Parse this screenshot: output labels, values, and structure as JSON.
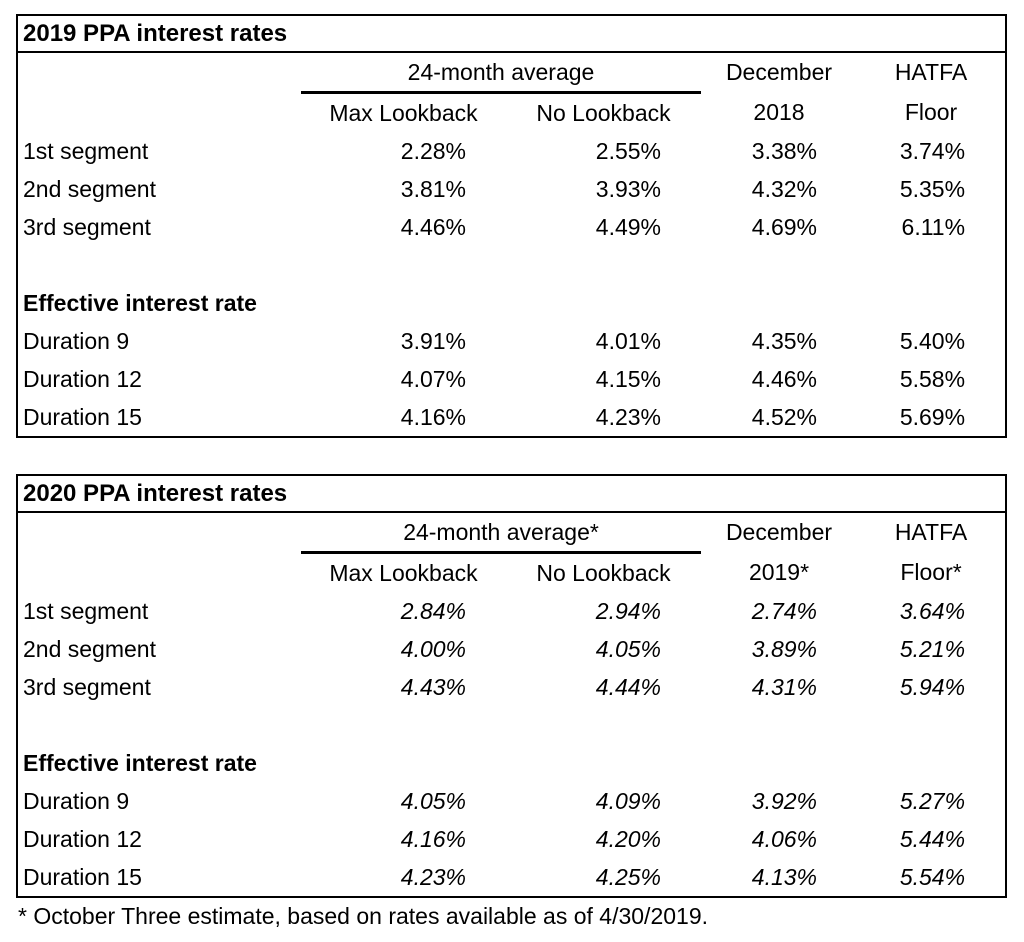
{
  "page": {
    "background_color": "#ffffff",
    "text_color": "#000000",
    "border_color": "#000000"
  },
  "footnote": "* October Three estimate, based on rates available as of 4/30/2019.",
  "tables": [
    {
      "title": "2019 PPA interest rates",
      "group_header": "24-month average",
      "sub_headers": [
        "Max Lookback",
        "No Lookback"
      ],
      "right_headers": [
        {
          "line1": "December",
          "line2": "2018"
        },
        {
          "line1": "HATFA",
          "line2": "Floor"
        }
      ],
      "segment_rows": [
        {
          "label": "1st segment",
          "values": [
            "2.28%",
            "2.55%",
            "3.38%",
            "3.74%"
          ]
        },
        {
          "label": "2nd segment",
          "values": [
            "3.81%",
            "3.93%",
            "4.32%",
            "5.35%"
          ]
        },
        {
          "label": "3rd segment",
          "values": [
            "4.46%",
            "4.49%",
            "4.69%",
            "6.11%"
          ]
        }
      ],
      "section_header": "Effective interest rate",
      "duration_rows": [
        {
          "label": "Duration 9",
          "values": [
            "3.91%",
            "4.01%",
            "4.35%",
            "5.40%"
          ]
        },
        {
          "label": "Duration 12",
          "values": [
            "4.07%",
            "4.15%",
            "4.46%",
            "5.58%"
          ]
        },
        {
          "label": "Duration 15",
          "values": [
            "4.16%",
            "4.23%",
            "4.52%",
            "5.69%"
          ]
        }
      ]
    },
    {
      "title": "2020 PPA interest rates",
      "group_header": "24-month average*",
      "sub_headers": [
        "Max Lookback",
        "No Lookback"
      ],
      "right_headers": [
        {
          "line1": "December",
          "line2": "2019*"
        },
        {
          "line1": "HATFA",
          "line2": "Floor*"
        }
      ],
      "segment_rows": [
        {
          "label": "1st segment",
          "values": [
            "2.84%",
            "2.94%",
            "2.74%",
            "3.64%"
          ]
        },
        {
          "label": "2nd segment",
          "values": [
            "4.00%",
            "4.05%",
            "3.89%",
            "5.21%"
          ]
        },
        {
          "label": "3rd segment",
          "values": [
            "4.43%",
            "4.44%",
            "4.31%",
            "5.94%"
          ]
        }
      ],
      "section_header": "Effective interest rate",
      "duration_rows": [
        {
          "label": "Duration 9",
          "values": [
            "4.05%",
            "4.09%",
            "3.92%",
            "5.27%"
          ]
        },
        {
          "label": "Duration 12",
          "values": [
            "4.16%",
            "4.20%",
            "4.06%",
            "5.44%"
          ]
        },
        {
          "label": "Duration 15",
          "values": [
            "4.23%",
            "4.25%",
            "4.13%",
            "5.54%"
          ]
        }
      ]
    }
  ]
}
